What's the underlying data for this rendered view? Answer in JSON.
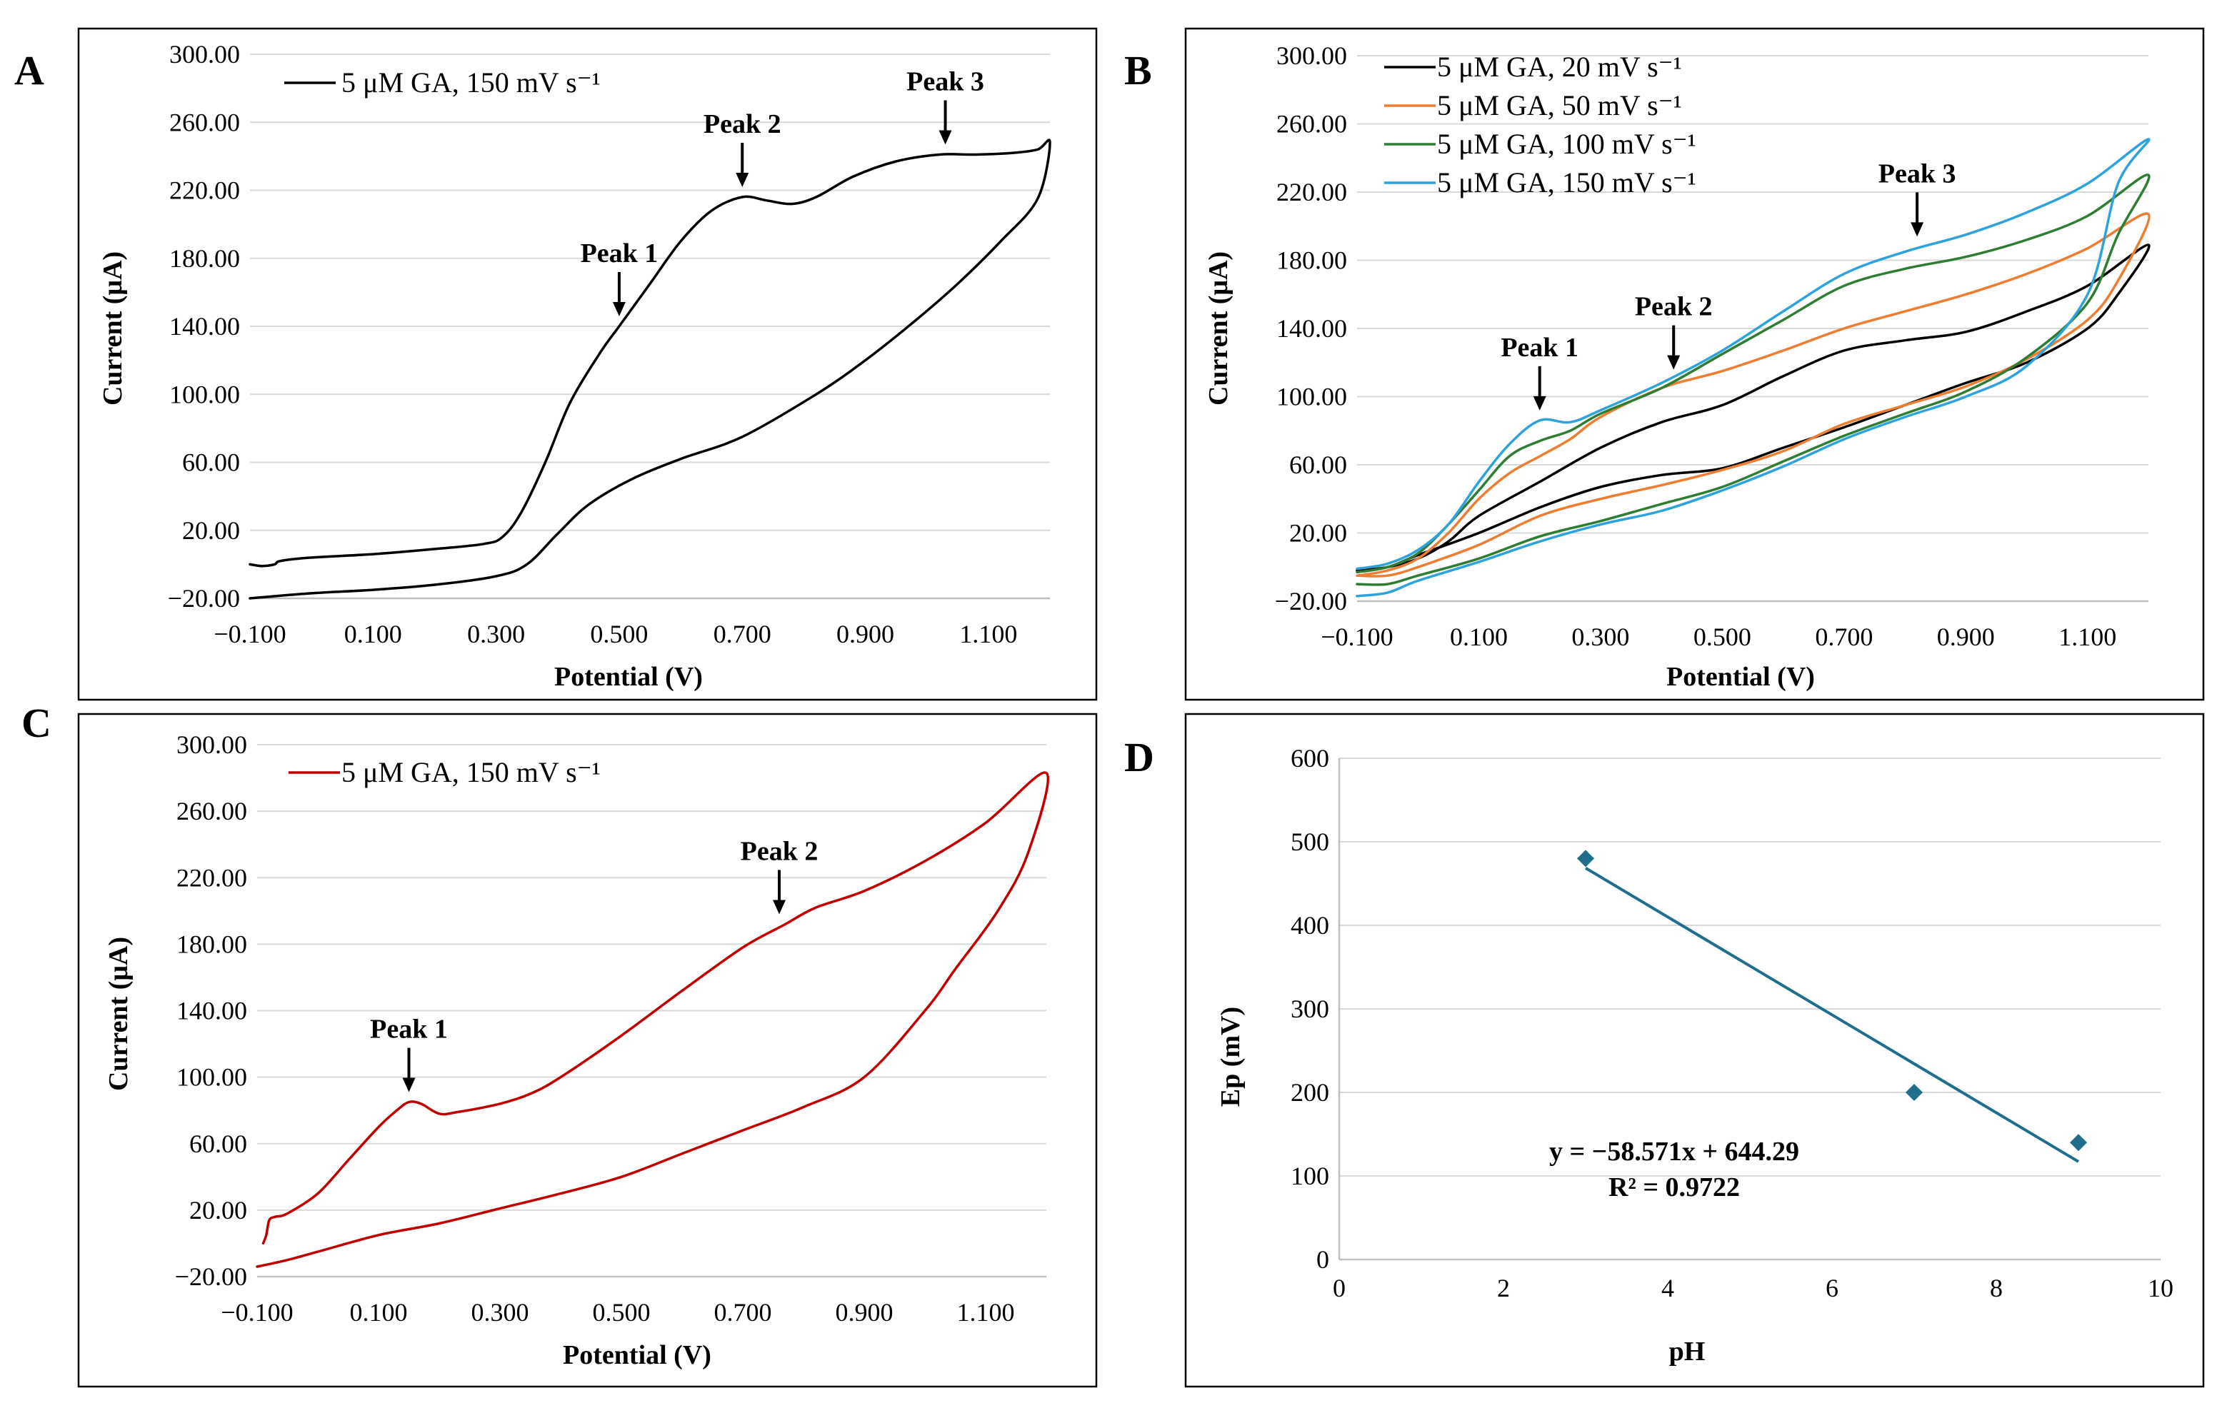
{
  "chart_data": [
    {
      "id": "A",
      "type": "line",
      "panel_label": "A",
      "xlabel": "Potential (V)",
      "ylabel": "Current (μA)",
      "xlim": [
        -0.1,
        1.2
      ],
      "ylim": [
        -20,
        300
      ],
      "xticks": [
        -0.1,
        0.1,
        0.3,
        0.5,
        0.7,
        0.9,
        1.1
      ],
      "xtick_labels": [
        "−0.100",
        "0.100",
        "0.300",
        "0.500",
        "0.700",
        "0.900",
        "1.100"
      ],
      "yticks": [
        -20,
        20,
        60,
        100,
        140,
        180,
        220,
        260,
        300
      ],
      "ytick_labels": [
        "−20.00",
        "20.00",
        "60.00",
        "100.00",
        "140.00",
        "180.00",
        "220.00",
        "260.00",
        "300.00"
      ],
      "legend_position": "top-left",
      "series": [
        {
          "name": "5 μM GA, 150 mV s⁻¹",
          "color": "#000000",
          "points": [
            [
              -0.1,
              0
            ],
            [
              -0.08,
              -1
            ],
            [
              -0.06,
              0
            ],
            [
              -0.05,
              2
            ],
            [
              0.0,
              4
            ],
            [
              0.1,
              6
            ],
            [
              0.2,
              9
            ],
            [
              0.28,
              12
            ],
            [
              0.31,
              16
            ],
            [
              0.34,
              30
            ],
            [
              0.38,
              60
            ],
            [
              0.42,
              95
            ],
            [
              0.47,
              125
            ],
            [
              0.5,
              140
            ],
            [
              0.55,
              165
            ],
            [
              0.6,
              190
            ],
            [
              0.65,
              208
            ],
            [
              0.7,
              216
            ],
            [
              0.74,
              214
            ],
            [
              0.78,
              212
            ],
            [
              0.82,
              216
            ],
            [
              0.88,
              228
            ],
            [
              0.95,
              237
            ],
            [
              1.02,
              241
            ],
            [
              1.08,
              241
            ],
            [
              1.14,
              242
            ],
            [
              1.18,
              244
            ],
            [
              1.2,
              248
            ],
            [
              1.18,
              215
            ],
            [
              1.12,
              190
            ],
            [
              1.05,
              165
            ],
            [
              0.98,
              143
            ],
            [
              0.9,
              120
            ],
            [
              0.82,
              100
            ],
            [
              0.7,
              75
            ],
            [
              0.6,
              62
            ],
            [
              0.52,
              50
            ],
            [
              0.45,
              35
            ],
            [
              0.4,
              18
            ],
            [
              0.35,
              0
            ],
            [
              0.3,
              -7
            ],
            [
              0.2,
              -12
            ],
            [
              0.1,
              -15
            ],
            [
              0.0,
              -17
            ],
            [
              -0.1,
              -20
            ]
          ]
        }
      ],
      "peaks": [
        {
          "label": "Peak 1",
          "x": 0.5,
          "y": 140
        },
        {
          "label": "Peak 2",
          "x": 0.7,
          "y": 216
        },
        {
          "label": "Peak 3",
          "x": 1.03,
          "y": 241
        }
      ]
    },
    {
      "id": "B",
      "type": "line",
      "panel_label": "B",
      "xlabel": "Potential (V)",
      "ylabel": "Current (μA)",
      "xlim": [
        -0.1,
        1.2
      ],
      "ylim": [
        -20,
        300
      ],
      "xticks": [
        -0.1,
        0.1,
        0.3,
        0.5,
        0.7,
        0.9,
        1.1
      ],
      "xtick_labels": [
        "−0.100",
        "0.100",
        "0.300",
        "0.500",
        "0.700",
        "0.900",
        "1.100"
      ],
      "yticks": [
        -20,
        20,
        60,
        100,
        140,
        180,
        220,
        260,
        300
      ],
      "ytick_labels": [
        "−20.00",
        "20.00",
        "60.00",
        "100.00",
        "140.00",
        "180.00",
        "220.00",
        "260.00",
        "300.00"
      ],
      "legend_position": "top-left",
      "series": [
        {
          "name": "5 μM GA, 20 mV s⁻¹",
          "color": "#000000",
          "points": [
            [
              -0.1,
              -2
            ],
            [
              -0.05,
              0
            ],
            [
              0.0,
              5
            ],
            [
              0.05,
              15
            ],
            [
              0.1,
              30
            ],
            [
              0.2,
              50
            ],
            [
              0.3,
              70
            ],
            [
              0.4,
              85
            ],
            [
              0.5,
              95
            ],
            [
              0.6,
              112
            ],
            [
              0.7,
              127
            ],
            [
              0.8,
              133
            ],
            [
              0.9,
              138
            ],
            [
              1.0,
              150
            ],
            [
              1.1,
              165
            ],
            [
              1.2,
              189
            ],
            [
              1.15,
              160
            ],
            [
              1.1,
              140
            ],
            [
              1.0,
              120
            ],
            [
              0.9,
              108
            ],
            [
              0.8,
              95
            ],
            [
              0.7,
              82
            ],
            [
              0.6,
              70
            ],
            [
              0.5,
              58
            ],
            [
              0.4,
              54
            ],
            [
              0.3,
              47
            ],
            [
              0.2,
              35
            ],
            [
              0.1,
              20
            ],
            [
              0.0,
              7
            ],
            [
              -0.05,
              0
            ],
            [
              -0.1,
              -2
            ]
          ]
        },
        {
          "name": "5 μM GA, 50 mV s⁻¹",
          "color": "#ED7D31",
          "points": [
            [
              -0.1,
              -5
            ],
            [
              -0.05,
              -2
            ],
            [
              0.0,
              5
            ],
            [
              0.05,
              20
            ],
            [
              0.1,
              40
            ],
            [
              0.15,
              55
            ],
            [
              0.2,
              65
            ],
            [
              0.25,
              75
            ],
            [
              0.3,
              88
            ],
            [
              0.4,
              105
            ],
            [
              0.5,
              115
            ],
            [
              0.6,
              127
            ],
            [
              0.7,
              140
            ],
            [
              0.8,
              150
            ],
            [
              0.9,
              160
            ],
            [
              1.0,
              172
            ],
            [
              1.1,
              187
            ],
            [
              1.2,
              207
            ],
            [
              1.15,
              168
            ],
            [
              1.1,
              145
            ],
            [
              1.0,
              122
            ],
            [
              0.9,
              106
            ],
            [
              0.8,
              95
            ],
            [
              0.7,
              84
            ],
            [
              0.6,
              68
            ],
            [
              0.5,
              57
            ],
            [
              0.4,
              48
            ],
            [
              0.3,
              40
            ],
            [
              0.2,
              30
            ],
            [
              0.1,
              13
            ],
            [
              0.0,
              0
            ],
            [
              -0.05,
              -5
            ],
            [
              -0.1,
              -5
            ]
          ]
        },
        {
          "name": "5 μM GA, 100 mV s⁻¹",
          "color": "#2E7D32",
          "points": [
            [
              -0.1,
              -3
            ],
            [
              -0.05,
              0
            ],
            [
              0.0,
              8
            ],
            [
              0.05,
              25
            ],
            [
              0.1,
              45
            ],
            [
              0.15,
              65
            ],
            [
              0.2,
              74
            ],
            [
              0.25,
              80
            ],
            [
              0.3,
              90
            ],
            [
              0.4,
              105
            ],
            [
              0.5,
              125
            ],
            [
              0.6,
              145
            ],
            [
              0.7,
              165
            ],
            [
              0.8,
              175
            ],
            [
              0.9,
              182
            ],
            [
              1.0,
              192
            ],
            [
              1.1,
              206
            ],
            [
              1.2,
              230
            ],
            [
              1.15,
              195
            ],
            [
              1.1,
              155
            ],
            [
              1.0,
              123
            ],
            [
              0.9,
              103
            ],
            [
              0.8,
              90
            ],
            [
              0.7,
              77
            ],
            [
              0.6,
              62
            ],
            [
              0.5,
              47
            ],
            [
              0.4,
              37
            ],
            [
              0.3,
              27
            ],
            [
              0.2,
              18
            ],
            [
              0.1,
              5
            ],
            [
              0.0,
              -5
            ],
            [
              -0.05,
              -10
            ],
            [
              -0.1,
              -10
            ]
          ]
        },
        {
          "name": "5 μM GA, 150 mV s⁻¹",
          "color": "#2EA3DB",
          "points": [
            [
              -0.1,
              -1
            ],
            [
              -0.05,
              2
            ],
            [
              0.0,
              10
            ],
            [
              0.05,
              25
            ],
            [
              0.1,
              50
            ],
            [
              0.15,
              72
            ],
            [
              0.2,
              86
            ],
            [
              0.25,
              85
            ],
            [
              0.3,
              92
            ],
            [
              0.4,
              108
            ],
            [
              0.5,
              127
            ],
            [
              0.6,
              150
            ],
            [
              0.7,
              172
            ],
            [
              0.8,
              185
            ],
            [
              0.9,
              195
            ],
            [
              1.0,
              208
            ],
            [
              1.1,
              225
            ],
            [
              1.2,
              251
            ],
            [
              1.15,
              225
            ],
            [
              1.1,
              160
            ],
            [
              1.0,
              118
            ],
            [
              0.9,
              100
            ],
            [
              0.8,
              88
            ],
            [
              0.7,
              75
            ],
            [
              0.6,
              59
            ],
            [
              0.5,
              45
            ],
            [
              0.4,
              33
            ],
            [
              0.3,
              25
            ],
            [
              0.2,
              15
            ],
            [
              0.1,
              3
            ],
            [
              0.0,
              -8
            ],
            [
              -0.05,
              -15
            ],
            [
              -0.1,
              -17
            ]
          ]
        }
      ],
      "peaks": [
        {
          "label": "Peak 1",
          "x": 0.2,
          "y": 86
        },
        {
          "label": "Peak 2",
          "x": 0.42,
          "y": 110
        },
        {
          "label": "Peak 3",
          "x": 0.82,
          "y": 188
        }
      ]
    },
    {
      "id": "C",
      "type": "line",
      "panel_label": "C",
      "xlabel": "Potential (V)",
      "ylabel": "Current (μA)",
      "xlim": [
        -0.1,
        1.2
      ],
      "ylim": [
        -20,
        300
      ],
      "xticks": [
        -0.1,
        0.1,
        0.3,
        0.5,
        0.7,
        0.9,
        1.1
      ],
      "xtick_labels": [
        "−0.100",
        "0.100",
        "0.300",
        "0.500",
        "0.700",
        "0.900",
        "1.100"
      ],
      "yticks": [
        -20,
        20,
        60,
        100,
        140,
        180,
        220,
        260,
        300
      ],
      "ytick_labels": [
        "−20.00",
        "20.00",
        "60.00",
        "100.00",
        "140.00",
        "180.00",
        "220.00",
        "260.00",
        "300.00"
      ],
      "legend_position": "top-left",
      "series": [
        {
          "name": "5 μM GA, 150 mV s⁻¹",
          "color": "#C00000",
          "points": [
            [
              -0.09,
              0
            ],
            [
              -0.085,
              5
            ],
            [
              -0.08,
              14
            ],
            [
              -0.07,
              16
            ],
            [
              -0.05,
              18
            ],
            [
              0.0,
              30
            ],
            [
              0.05,
              50
            ],
            [
              0.1,
              70
            ],
            [
              0.13,
              80
            ],
            [
              0.15,
              85
            ],
            [
              0.17,
              84
            ],
            [
              0.2,
              78
            ],
            [
              0.23,
              79
            ],
            [
              0.3,
              84
            ],
            [
              0.35,
              90
            ],
            [
              0.4,
              100
            ],
            [
              0.5,
              125
            ],
            [
              0.6,
              152
            ],
            [
              0.7,
              178
            ],
            [
              0.77,
              192
            ],
            [
              0.82,
              202
            ],
            [
              0.9,
              212
            ],
            [
              1.0,
              230
            ],
            [
              1.1,
              253
            ],
            [
              1.2,
              283
            ],
            [
              1.17,
              235
            ],
            [
              1.12,
              200
            ],
            [
              1.05,
              165
            ],
            [
              1.0,
              140
            ],
            [
              0.9,
              100
            ],
            [
              0.8,
              82
            ],
            [
              0.7,
              68
            ],
            [
              0.6,
              54
            ],
            [
              0.5,
              40
            ],
            [
              0.4,
              30
            ],
            [
              0.3,
              21
            ],
            [
              0.2,
              12
            ],
            [
              0.1,
              5
            ],
            [
              0.0,
              -5
            ],
            [
              -0.05,
              -10
            ],
            [
              -0.1,
              -14
            ]
          ]
        }
      ],
      "peaks": [
        {
          "label": "Peak 1",
          "x": 0.15,
          "y": 85
        },
        {
          "label": "Peak 2",
          "x": 0.76,
          "y": 192
        }
      ]
    },
    {
      "id": "D",
      "type": "scatter",
      "panel_label": "D",
      "xlabel": "pH",
      "ylabel": "Ep (mV)",
      "xlim": [
        0,
        10
      ],
      "ylim": [
        0,
        600
      ],
      "xticks": [
        0,
        2,
        4,
        6,
        8,
        10
      ],
      "xtick_labels": [
        "0",
        "2",
        "4",
        "6",
        "8",
        "10"
      ],
      "yticks": [
        0,
        100,
        200,
        300,
        400,
        500,
        600
      ],
      "ytick_labels": [
        "0",
        "100",
        "200",
        "300",
        "400",
        "500",
        "600"
      ],
      "series": [
        {
          "name": "Ep",
          "color": "#1F6E8C",
          "x": [
            3,
            7,
            9
          ],
          "y": [
            480,
            200,
            140
          ]
        }
      ],
      "trendline": {
        "slope": -58.571,
        "intercept": 644.29,
        "x_range": [
          3,
          9
        ],
        "color": "#1F6E8C"
      },
      "equation": "y = −58.571x + 644.29",
      "r_squared": "R² = 0.9722"
    }
  ]
}
